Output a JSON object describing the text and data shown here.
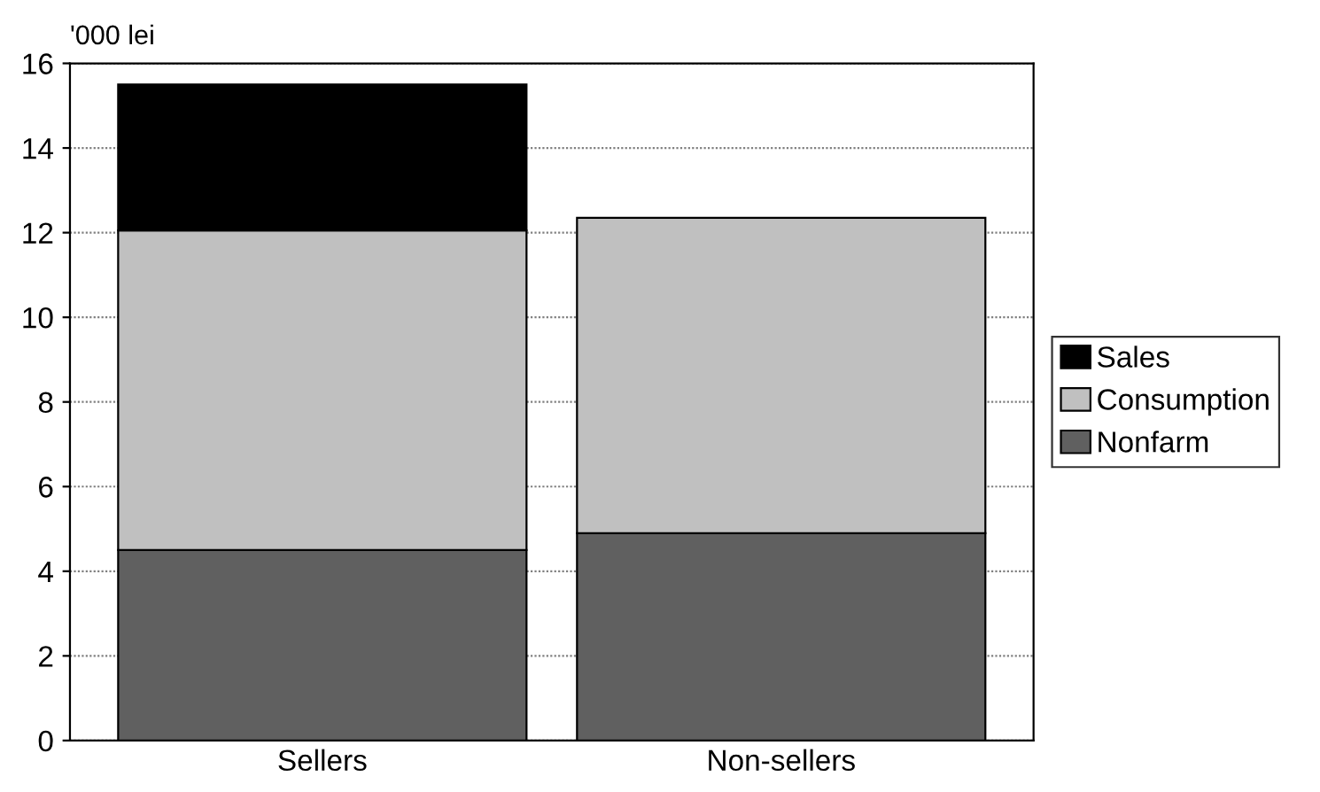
{
  "chart_data": {
    "type": "bar",
    "stacked": true,
    "ylabel": "'000 lei",
    "categories": [
      "Sellers",
      "Non-sellers"
    ],
    "series": [
      {
        "name": "Nonfarm",
        "color": "#606060",
        "values": [
          4.5,
          4.9
        ]
      },
      {
        "name": "Consumption",
        "color": "#c0c0c0",
        "values": [
          7.55,
          7.45
        ]
      },
      {
        "name": "Sales",
        "color": "#000000",
        "values": [
          3.45,
          null
        ]
      }
    ],
    "ylim": [
      0,
      16
    ],
    "yticks": [
      0,
      2,
      4,
      6,
      8,
      10,
      12,
      14,
      16
    ],
    "grid": "y",
    "legend": "right"
  }
}
